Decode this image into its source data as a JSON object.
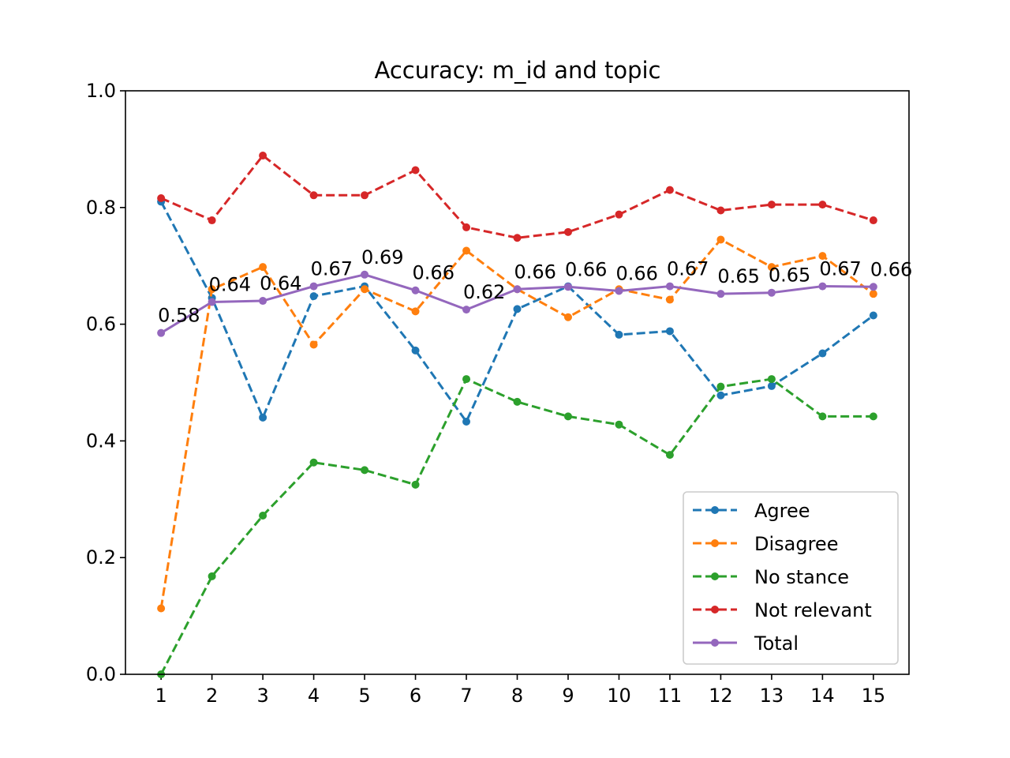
{
  "chart_data": {
    "type": "line",
    "title": "Accuracy: m_id and topic",
    "xlabel": "",
    "ylabel": "",
    "x": [
      1,
      2,
      3,
      4,
      5,
      6,
      7,
      8,
      9,
      10,
      11,
      12,
      13,
      14,
      15
    ],
    "xlim": [
      0.3,
      15.7
    ],
    "ylim": [
      0.0,
      1.0
    ],
    "yticks": [
      0.0,
      0.2,
      0.4,
      0.6,
      0.8,
      1.0
    ],
    "ytick_labels": [
      "0.0",
      "0.2",
      "0.4",
      "0.6",
      "0.8",
      "1.0"
    ],
    "grid": false,
    "legend_position": "lower-right",
    "series": [
      {
        "name": "Agree",
        "color": "#1f77b4",
        "style": "dashed",
        "values": [
          0.81,
          0.645,
          0.44,
          0.648,
          0.665,
          0.555,
          0.433,
          0.626,
          0.665,
          0.582,
          0.588,
          0.478,
          0.494,
          0.55,
          0.615
        ]
      },
      {
        "name": "Disagree",
        "color": "#ff7f0e",
        "style": "dashed",
        "values": [
          0.113,
          0.66,
          0.698,
          0.565,
          0.66,
          0.622,
          0.726,
          0.66,
          0.612,
          0.66,
          0.642,
          0.745,
          0.698,
          0.717,
          0.652
        ]
      },
      {
        "name": "No stance",
        "color": "#2ca02c",
        "style": "dashed",
        "values": [
          0.0,
          0.168,
          0.272,
          0.363,
          0.35,
          0.325,
          0.506,
          0.467,
          0.442,
          0.428,
          0.376,
          0.493,
          0.506,
          0.442,
          0.442
        ]
      },
      {
        "name": "Not relevant",
        "color": "#d62728",
        "style": "dashed",
        "values": [
          0.816,
          0.778,
          0.889,
          0.821,
          0.821,
          0.864,
          0.766,
          0.748,
          0.758,
          0.788,
          0.83,
          0.795,
          0.805,
          0.805,
          0.778
        ]
      },
      {
        "name": "Total",
        "color": "#9467bd",
        "style": "solid",
        "values": [
          0.585,
          0.638,
          0.64,
          0.665,
          0.685,
          0.658,
          0.625,
          0.66,
          0.664,
          0.657,
          0.665,
          0.652,
          0.654,
          0.665,
          0.664
        ]
      }
    ],
    "data_labels": {
      "series": "Total",
      "labels": [
        "0.58",
        "0.64",
        "0.64",
        "0.67",
        "0.69",
        "0.66",
        "0.62",
        "0.66",
        "0.66",
        "0.66",
        "0.67",
        "0.65",
        "0.65",
        "0.67",
        "0.66"
      ]
    }
  }
}
